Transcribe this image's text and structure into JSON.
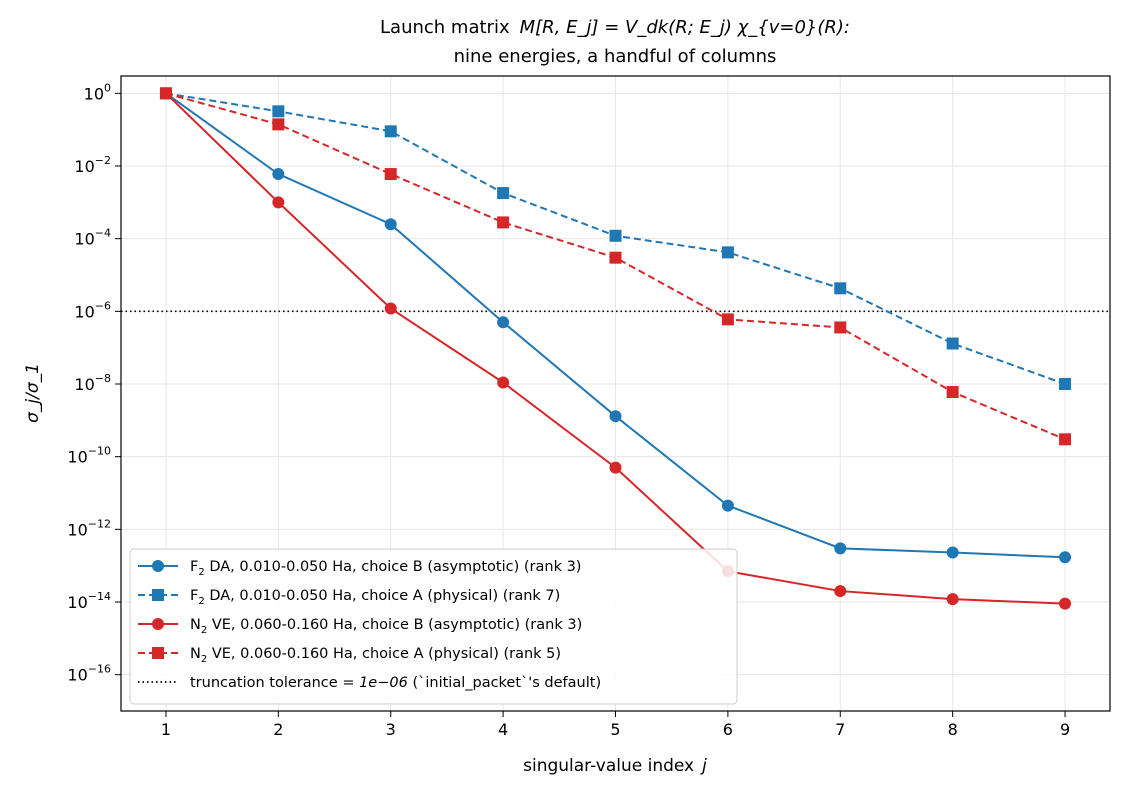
{
  "chart_data": {
    "type": "line",
    "title_line1_prefix": "Launch matrix",
    "title_line1_formula": "M[R, E_j] = V_dk(R; E_j) χ_{v=0}(R):",
    "title_line2": "nine energies, a handful of columns",
    "xlabel_text": "singular-value index",
    "xlabel_var": "j",
    "ylabel": "σ_j/σ_1",
    "yscale": "log",
    "ylim": [
      1e-17,
      3.0
    ],
    "xlim": [
      0.6,
      9.4
    ],
    "x": [
      1,
      2,
      3,
      4,
      5,
      6,
      7,
      8,
      9
    ],
    "xticks": [
      "1",
      "2",
      "3",
      "4",
      "5",
      "6",
      "7",
      "8",
      "9"
    ],
    "yticks": [
      {
        "exp": 0,
        "base": "10",
        "sup": "0"
      },
      {
        "exp": -2,
        "base": "10",
        "sup": "−2"
      },
      {
        "exp": -4,
        "base": "10",
        "sup": "−4"
      },
      {
        "exp": -6,
        "base": "10",
        "sup": "−6"
      },
      {
        "exp": -8,
        "base": "10",
        "sup": "−8"
      },
      {
        "exp": -10,
        "base": "10",
        "sup": "−10"
      },
      {
        "exp": -12,
        "base": "10",
        "sup": "−12"
      },
      {
        "exp": -14,
        "base": "10",
        "sup": "−14"
      },
      {
        "exp": -16,
        "base": "10",
        "sup": "−16"
      }
    ],
    "grid": true,
    "legend_position": "lower-left",
    "series": [
      {
        "molecule": "F",
        "sub": "2",
        "name_rest": " DA, 0.010-0.050 Ha, choice B (asymptotic) (rank 3)",
        "color": "#1f77b4",
        "linestyle": "solid",
        "marker": "circle",
        "values": [
          1.0,
          0.006,
          0.00025,
          5e-07,
          1.3e-09,
          4.5e-12,
          3e-13,
          2.3e-13,
          1.7e-13
        ]
      },
      {
        "molecule": "F",
        "sub": "2",
        "name_rest": " DA, 0.010-0.050 Ha, choice A (physical) (rank 7)",
        "color": "#1f77b4",
        "linestyle": "dashed",
        "marker": "square",
        "values": [
          1.0,
          0.32,
          0.09,
          0.0018,
          0.00012,
          4.2e-05,
          4.3e-06,
          1.3e-07,
          1e-08
        ]
      },
      {
        "molecule": "N",
        "sub": "2",
        "name_rest": " VE, 0.060-0.160 Ha, choice B (asymptotic) (rank 3)",
        "color": "#d62728",
        "linestyle": "solid",
        "marker": "circle",
        "values": [
          1.0,
          0.001,
          1.2e-06,
          1.1e-08,
          5e-11,
          7e-14,
          2e-14,
          1.2e-14,
          9e-15
        ]
      },
      {
        "molecule": "N",
        "sub": "2",
        "name_rest": " VE, 0.060-0.160 Ha, choice A (physical) (rank 5)",
        "color": "#d62728",
        "linestyle": "dashed",
        "marker": "square",
        "values": [
          1.0,
          0.14,
          0.006,
          0.00028,
          3e-05,
          6e-07,
          3.6e-07,
          6e-09,
          3e-10
        ]
      }
    ],
    "reference_line": {
      "value": 1e-06,
      "label_prefix": "truncation tolerance ",
      "label_formula": "= 1e−06",
      "label_suffix": " (`initial_packet`'s default)",
      "color": "#000000",
      "linestyle": "dotted"
    }
  }
}
